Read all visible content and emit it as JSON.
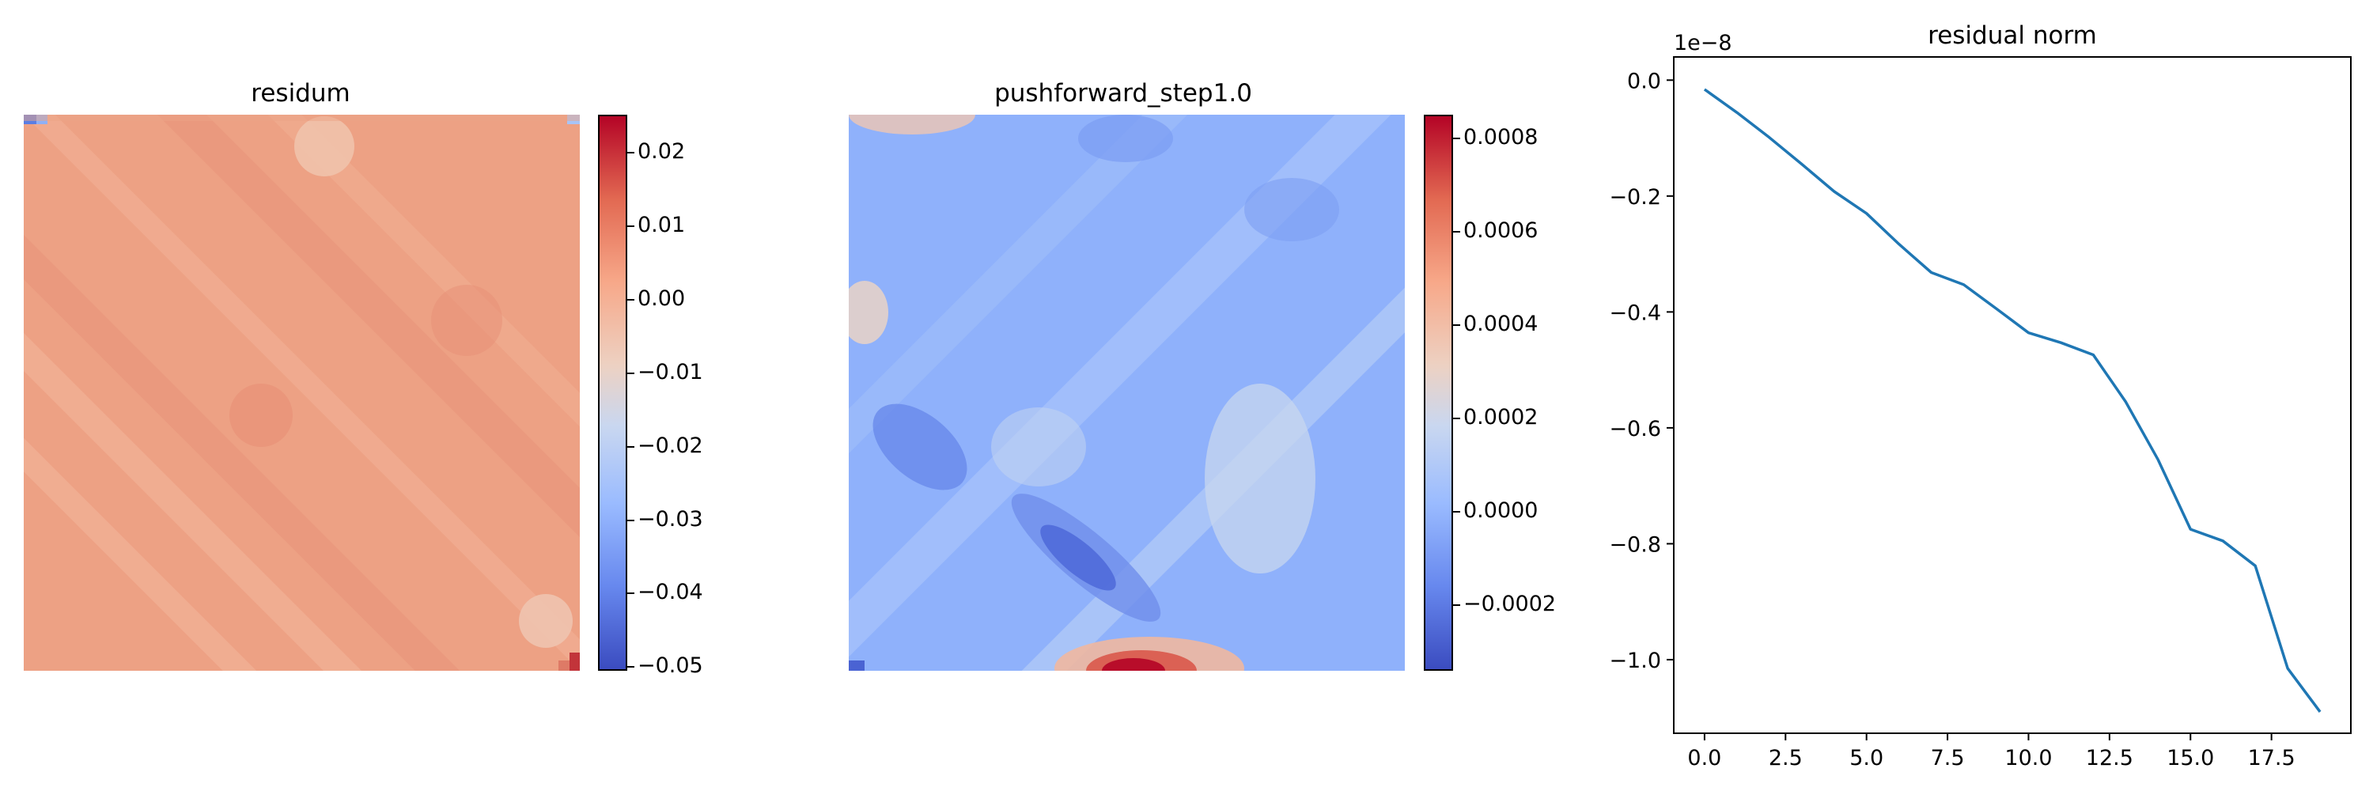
{
  "chart_data": [
    {
      "type": "heatmap",
      "title": "residum",
      "colormap": "coolwarm",
      "colorbar": {
        "ticks": [
          "0.02",
          "0.01",
          "0.00",
          "−0.01",
          "−0.02",
          "−0.03",
          "−0.04",
          "−0.05"
        ],
        "tick_values": [
          0.02,
          0.01,
          0.0,
          -0.01,
          -0.02,
          -0.03,
          -0.04,
          -0.05
        ],
        "range": [
          -0.0505,
          0.0252
        ]
      },
      "axis": "off"
    },
    {
      "type": "heatmap",
      "title": "pushforward_step1.0",
      "colormap": "coolwarm",
      "colorbar": {
        "ticks": [
          "0.0008",
          "0.0006",
          "0.0004",
          "0.0002",
          "0.0000",
          "−0.0002"
        ],
        "tick_values": [
          0.0008,
          0.0006,
          0.0004,
          0.0002,
          0.0,
          -0.0002
        ],
        "range": [
          -0.00034,
          0.00085
        ]
      },
      "axis": "off"
    },
    {
      "type": "line",
      "title": "residual norm",
      "offset_text": "1e−8",
      "x": [
        0,
        1,
        2,
        3,
        4,
        5,
        6,
        7,
        8,
        9,
        10,
        11,
        12,
        13,
        14,
        15,
        16,
        17,
        18,
        19
      ],
      "y": [
        -0.016,
        -0.056,
        -0.099,
        -0.145,
        -0.192,
        -0.23,
        -0.283,
        -0.332,
        -0.353,
        -0.394,
        -0.436,
        -0.453,
        -0.474,
        -0.555,
        -0.655,
        -0.775,
        -0.795,
        -0.838,
        -1.015,
        -1.09
      ],
      "xlim": [
        -0.95,
        19.95
      ],
      "ylim": [
        -1.127,
        0.04
      ],
      "xticks": [
        "0.0",
        "2.5",
        "5.0",
        "7.5",
        "10.0",
        "12.5",
        "15.0",
        "17.5"
      ],
      "xtick_values": [
        0,
        2.5,
        5,
        7.5,
        10,
        12.5,
        15,
        17.5
      ],
      "yticks": [
        "0.0",
        "−0.2",
        "−0.4",
        "−0.6",
        "−0.8",
        "−1.0"
      ],
      "ytick_values": [
        0,
        -0.2,
        -0.4,
        -0.6,
        -0.8,
        -1.0
      ],
      "line_color": "#1f77b4",
      "grid": false,
      "xlabel": "",
      "ylabel": ""
    }
  ]
}
